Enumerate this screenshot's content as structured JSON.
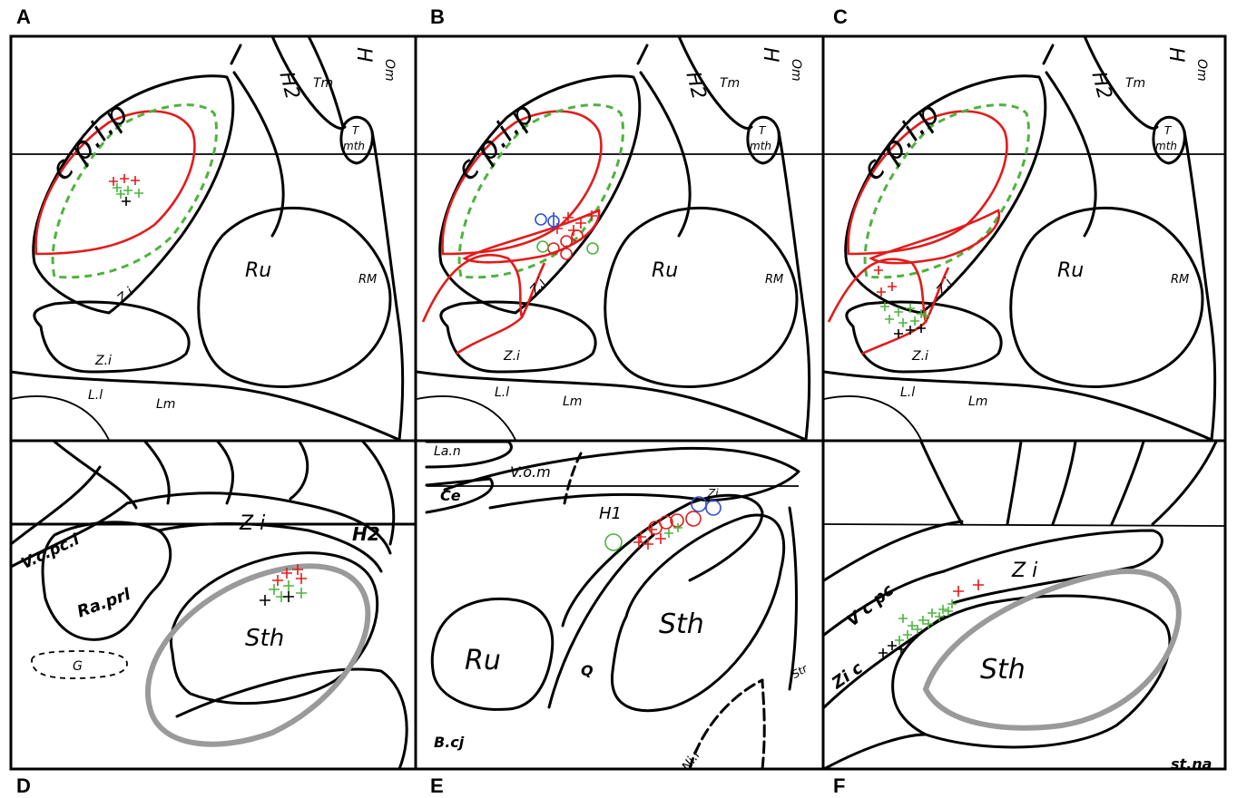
{
  "figure": {
    "panels": [
      {
        "letter": "A",
        "labels": {
          "cpip": "c p.i.p",
          "h2": "H2",
          "h": "H",
          "tm": "Tm",
          "om": "Om",
          "t": "T",
          "mth": "mth",
          "ru": "Ru",
          "rm": "RM",
          "zi1": "Z.i",
          "zi2": "Z.i",
          "ll": "L.l",
          "lm": "Lm"
        }
      },
      {
        "letter": "B",
        "labels": {
          "cpip": "c p.i.p",
          "h2": "H2",
          "h": "H",
          "tm": "Tm",
          "om": "Om",
          "t": "T",
          "mth": "mth",
          "ru": "Ru",
          "rm": "RM",
          "zi1": "Z.i",
          "zi2": "Z.i",
          "ll": "L.l",
          "lm": "Lm"
        }
      },
      {
        "letter": "C",
        "labels": {
          "cpip": "c p.i.p",
          "h2": "H2",
          "h": "H",
          "tm": "Tm",
          "om": "Om",
          "t": "T",
          "mth": "mth",
          "ru": "Ru",
          "rm": "RM",
          "zi1": "Z.i",
          "zi2": "Z.i",
          "ll": "L.l",
          "lm": "Lm"
        }
      },
      {
        "letter": "D",
        "labels": {
          "vcpci": "V.c.pc.i",
          "zi": "Z i",
          "h2": "H2",
          "rapri": "Ra.prl",
          "sth": "Sth",
          "g": "G"
        }
      },
      {
        "letter": "E",
        "labels": {
          "lan": "La.n",
          "ce": "Ce",
          "vom": "V.o.m",
          "h1": "H1",
          "zi": "Zi",
          "ru": "Ru",
          "q": "Q",
          "sth": "Sth",
          "str": "Str",
          "bcj": "B.cj",
          "nir": "Ni.r"
        }
      },
      {
        "letter": "F",
        "labels": {
          "vcpc": "V c pc",
          "zi": "Z i",
          "zic": "Zi c",
          "sth": "Sth",
          "strna": "st.na"
        }
      }
    ],
    "colors": {
      "red": "#e31b1b",
      "green": "#4db33d",
      "blue": "#2e4fd1",
      "grey": "#9a9a9a",
      "black": "#000000"
    }
  }
}
